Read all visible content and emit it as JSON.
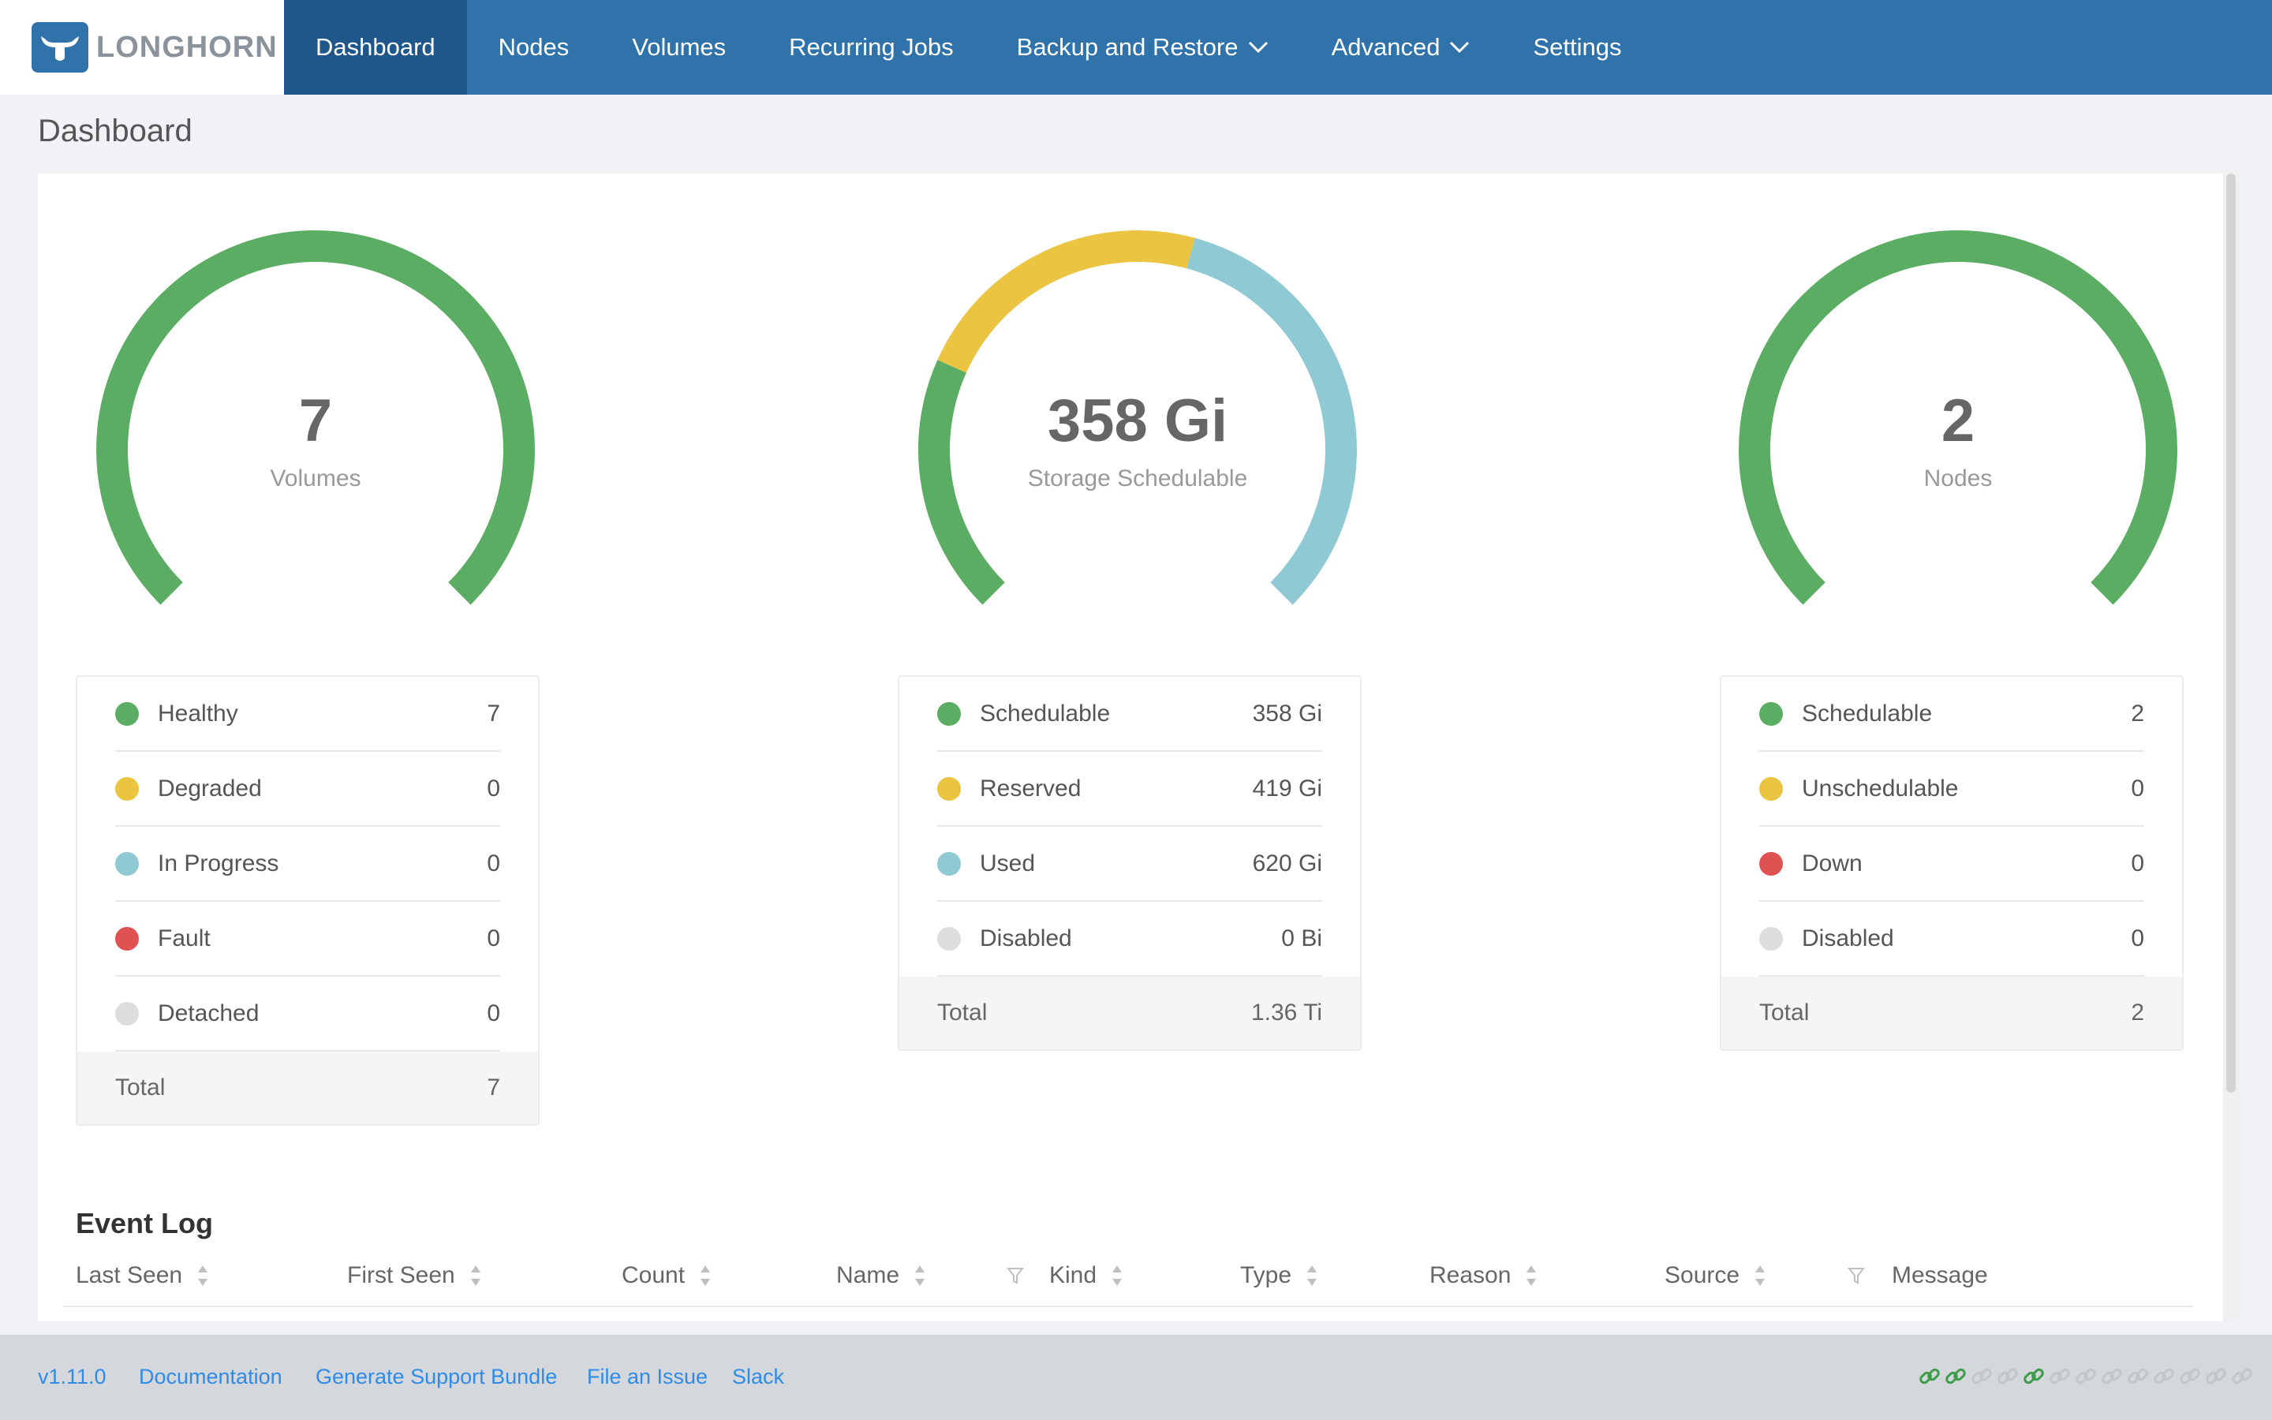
{
  "header": {
    "logo_text": "LONGHORN",
    "nav": [
      {
        "label": "Dashboard",
        "active": true,
        "dropdown": false
      },
      {
        "label": "Nodes",
        "active": false,
        "dropdown": false
      },
      {
        "label": "Volumes",
        "active": false,
        "dropdown": false
      },
      {
        "label": "Recurring Jobs",
        "active": false,
        "dropdown": false
      },
      {
        "label": "Backup and Restore",
        "active": false,
        "dropdown": true
      },
      {
        "label": "Advanced",
        "active": false,
        "dropdown": true
      },
      {
        "label": "Settings",
        "active": false,
        "dropdown": false
      }
    ]
  },
  "page": {
    "title": "Dashboard"
  },
  "colors": {
    "brand": "#2f73aa",
    "nav_active": "#1f578b",
    "green": "#5aad63",
    "yellow": "#ebc441",
    "blue": "#8fcad4",
    "red": "#e05252",
    "gray": "#dddddd",
    "link": "#2f8be6"
  },
  "gauges": [
    {
      "value": "7",
      "label": "Volumes",
      "segments": [
        {
          "name": "Healthy",
          "value": 7,
          "color": "#5aad63"
        }
      ],
      "legend": [
        {
          "name": "Healthy",
          "value": "7",
          "color": "#5aad63"
        },
        {
          "name": "Degraded",
          "value": "0",
          "color": "#ebc441"
        },
        {
          "name": "In Progress",
          "value": "0",
          "color": "#8fcad4"
        },
        {
          "name": "Fault",
          "value": "0",
          "color": "#e05252"
        },
        {
          "name": "Detached",
          "value": "0",
          "color": "#dddddd"
        }
      ],
      "total_label": "Total",
      "total_value": "7"
    },
    {
      "value": "358 Gi",
      "label": "Storage Schedulable",
      "segments": [
        {
          "name": "Schedulable",
          "value": 358,
          "color": "#5aad63"
        },
        {
          "name": "Reserved",
          "value": 419,
          "color": "#ebc441"
        },
        {
          "name": "Used",
          "value": 620,
          "color": "#8fcad4"
        }
      ],
      "legend": [
        {
          "name": "Schedulable",
          "value": "358 Gi",
          "color": "#5aad63"
        },
        {
          "name": "Reserved",
          "value": "419 Gi",
          "color": "#ebc441"
        },
        {
          "name": "Used",
          "value": "620 Gi",
          "color": "#8fcad4"
        },
        {
          "name": "Disabled",
          "value": "0 Bi",
          "color": "#dddddd"
        }
      ],
      "total_label": "Total",
      "total_value": "1.36 Ti"
    },
    {
      "value": "2",
      "label": "Nodes",
      "segments": [
        {
          "name": "Schedulable",
          "value": 2,
          "color": "#5aad63"
        }
      ],
      "legend": [
        {
          "name": "Schedulable",
          "value": "2",
          "color": "#5aad63"
        },
        {
          "name": "Unschedulable",
          "value": "0",
          "color": "#ebc441"
        },
        {
          "name": "Down",
          "value": "0",
          "color": "#e05252"
        },
        {
          "name": "Disabled",
          "value": "0",
          "color": "#dddddd"
        }
      ],
      "total_label": "Total",
      "total_value": "2"
    }
  ],
  "event_log": {
    "title": "Event Log",
    "columns": [
      {
        "label": "Last Seen",
        "sortable": true,
        "filter": false
      },
      {
        "label": "First Seen",
        "sortable": true,
        "filter": false
      },
      {
        "label": "Count",
        "sortable": true,
        "filter": false
      },
      {
        "label": "Name",
        "sortable": true,
        "filter": true
      },
      {
        "label": "Kind",
        "sortable": true,
        "filter": false
      },
      {
        "label": "Type",
        "sortable": true,
        "filter": false
      },
      {
        "label": "Reason",
        "sortable": true,
        "filter": false
      },
      {
        "label": "Source",
        "sortable": true,
        "filter": true
      },
      {
        "label": "Message",
        "sortable": false,
        "filter": false
      }
    ]
  },
  "footer": {
    "links": [
      "v1.11.0",
      "Documentation",
      "Generate Support Bundle",
      "File an Issue",
      "Slack"
    ],
    "connection_icons": [
      "green",
      "green",
      "gray",
      "gray",
      "green",
      "gray",
      "gray",
      "gray",
      "gray",
      "gray",
      "gray",
      "gray",
      "gray"
    ]
  }
}
